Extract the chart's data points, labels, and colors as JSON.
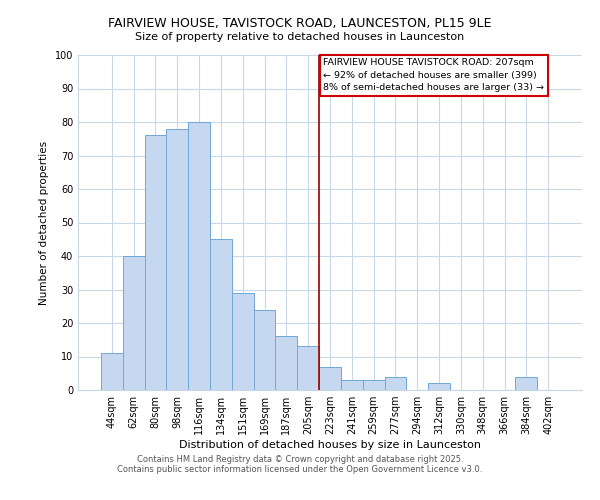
{
  "title": "FAIRVIEW HOUSE, TAVISTOCK ROAD, LAUNCESTON, PL15 9LE",
  "subtitle": "Size of property relative to detached houses in Launceston",
  "xlabel": "Distribution of detached houses by size in Launceston",
  "ylabel": "Number of detached properties",
  "bar_labels": [
    "44sqm",
    "62sqm",
    "80sqm",
    "98sqm",
    "116sqm",
    "134sqm",
    "151sqm",
    "169sqm",
    "187sqm",
    "205sqm",
    "223sqm",
    "241sqm",
    "259sqm",
    "277sqm",
    "294sqm",
    "312sqm",
    "330sqm",
    "348sqm",
    "366sqm",
    "384sqm",
    "402sqm"
  ],
  "bar_values": [
    11,
    40,
    76,
    78,
    80,
    45,
    29,
    24,
    16,
    13,
    7,
    3,
    3,
    4,
    0,
    2,
    0,
    0,
    0,
    4,
    0
  ],
  "bar_color": "#c5d8f0",
  "bar_edge_color": "#6fa8d6",
  "vline_x": 9.5,
  "vline_color": "#990000",
  "annotation_text": "FAIRVIEW HOUSE TAVISTOCK ROAD: 207sqm\n← 92% of detached houses are smaller (399)\n8% of semi-detached houses are larger (33) →",
  "annotation_box_color": "#ffffff",
  "annotation_box_edge": "#cc0000",
  "ylim": [
    0,
    100
  ],
  "yticks": [
    0,
    10,
    20,
    30,
    40,
    50,
    60,
    70,
    80,
    90,
    100
  ],
  "background_color": "#ffffff",
  "grid_color": "#c8d8e8",
  "footer1": "Contains HM Land Registry data © Crown copyright and database right 2025.",
  "footer2": "Contains public sector information licensed under the Open Government Licence v3.0."
}
